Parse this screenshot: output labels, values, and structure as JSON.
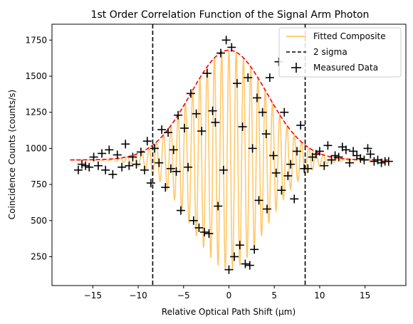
{
  "chart_data": {
    "type": "scatter",
    "title": "1st Order Correlation Function of the Signal Arm Photon",
    "xlabel": "Relative Optical Path Shift (μm)",
    "ylabel": "Coincidence Counts (counts/s)",
    "xlim": [
      -19.5,
      19.5
    ],
    "ylim": [
      50,
      1860
    ],
    "xticks": [
      -15,
      -10,
      -5,
      0,
      5,
      10,
      15
    ],
    "xtick_labels": [
      "−15",
      "−10",
      "−5",
      "0",
      "5",
      "10",
      "15"
    ],
    "yticks": [
      250,
      500,
      750,
      1000,
      1250,
      1500,
      1750
    ],
    "ytick_labels": [
      "250",
      "500",
      "750",
      "1000",
      "1250",
      "1500",
      "1750"
    ],
    "legend_position": "top-right",
    "series": [
      {
        "name": "Fitted Composite",
        "kind": "line",
        "color": "#ffbe50",
        "model": {
          "baseline": 920,
          "amplitude": 760,
          "center": 0.0,
          "sigma": 4.2,
          "period": 0.8,
          "x_range": [
            -17.5,
            17.5
          ]
        }
      },
      {
        "name": "",
        "kind": "envelope",
        "color": "#ff0000",
        "model": {
          "baseline": 920,
          "amplitude": 760,
          "center": 0.0,
          "sigma": 4.2,
          "x_range": [
            -17.5,
            17.5
          ]
        }
      },
      {
        "name": "2 sigma",
        "kind": "vlines",
        "color": "#000000",
        "x": [
          -8.4,
          8.4
        ]
      },
      {
        "name": "Measured Data",
        "kind": "scatter",
        "marker": "+",
        "color": "#000000",
        "points": [
          [
            -16.6,
            850
          ],
          [
            -16.2,
            890
          ],
          [
            -15.8,
            880
          ],
          [
            -15.4,
            870
          ],
          [
            -14.9,
            940
          ],
          [
            -14.4,
            880
          ],
          [
            -14.0,
            965
          ],
          [
            -13.6,
            850
          ],
          [
            -13.2,
            990
          ],
          [
            -12.8,
            820
          ],
          [
            -12.3,
            955
          ],
          [
            -11.8,
            870
          ],
          [
            -11.4,
            1030
          ],
          [
            -11.0,
            880
          ],
          [
            -10.6,
            940
          ],
          [
            -10.2,
            890
          ],
          [
            -9.7,
            975
          ],
          [
            -9.3,
            850
          ],
          [
            -9.0,
            1050
          ],
          [
            -8.6,
            760
          ],
          [
            -8.2,
            1000
          ],
          [
            -7.7,
            900
          ],
          [
            -7.4,
            1130
          ],
          [
            -7.0,
            730
          ],
          [
            -6.7,
            1110
          ],
          [
            -6.4,
            860
          ],
          [
            -6.1,
            990
          ],
          [
            -5.8,
            840
          ],
          [
            -5.6,
            1230
          ],
          [
            -5.3,
            570
          ],
          [
            -4.9,
            1140
          ],
          [
            -4.5,
            870
          ],
          [
            -4.2,
            1380
          ],
          [
            -3.9,
            500
          ],
          [
            -3.6,
            1240
          ],
          [
            -3.3,
            450
          ],
          [
            -3.0,
            1120
          ],
          [
            -2.7,
            420
          ],
          [
            -2.4,
            1520
          ],
          [
            -2.2,
            410
          ],
          [
            -1.8,
            1260
          ],
          [
            -1.5,
            1180
          ],
          [
            -1.2,
            600
          ],
          [
            -0.9,
            1660
          ],
          [
            -0.6,
            850
          ],
          [
            -0.3,
            1750
          ],
          [
            0.0,
            160
          ],
          [
            0.3,
            1700
          ],
          [
            0.6,
            250
          ],
          [
            0.9,
            1450
          ],
          [
            1.2,
            330
          ],
          [
            1.5,
            1150
          ],
          [
            1.8,
            200
          ],
          [
            2.1,
            1490
          ],
          [
            2.3,
            190
          ],
          [
            2.6,
            1000
          ],
          [
            2.8,
            300
          ],
          [
            3.1,
            1350
          ],
          [
            3.3,
            640
          ],
          [
            3.7,
            1250
          ],
          [
            4.1,
            1100
          ],
          [
            4.2,
            580
          ],
          [
            4.5,
            1490
          ],
          [
            4.9,
            950
          ],
          [
            5.2,
            830
          ],
          [
            5.5,
            1600
          ],
          [
            5.8,
            710
          ],
          [
            6.1,
            1250
          ],
          [
            6.5,
            810
          ],
          [
            6.8,
            890
          ],
          [
            7.2,
            650
          ],
          [
            7.5,
            980
          ],
          [
            7.9,
            1160
          ],
          [
            8.3,
            860
          ],
          [
            8.7,
            860
          ],
          [
            9.2,
            940
          ],
          [
            9.6,
            960
          ],
          [
            10.0,
            980
          ],
          [
            10.5,
            880
          ],
          [
            10.9,
            1020
          ],
          [
            11.3,
            920
          ],
          [
            11.7,
            950
          ],
          [
            12.1,
            940
          ],
          [
            12.5,
            1010
          ],
          [
            12.9,
            990
          ],
          [
            13.3,
            900
          ],
          [
            13.7,
            980
          ],
          [
            14.1,
            950
          ],
          [
            14.5,
            930
          ],
          [
            14.9,
            920
          ],
          [
            15.3,
            1000
          ],
          [
            15.6,
            960
          ],
          [
            16.0,
            910
          ],
          [
            16.4,
            920
          ],
          [
            16.8,
            900
          ],
          [
            17.2,
            910
          ],
          [
            17.6,
            910
          ]
        ]
      }
    ]
  }
}
